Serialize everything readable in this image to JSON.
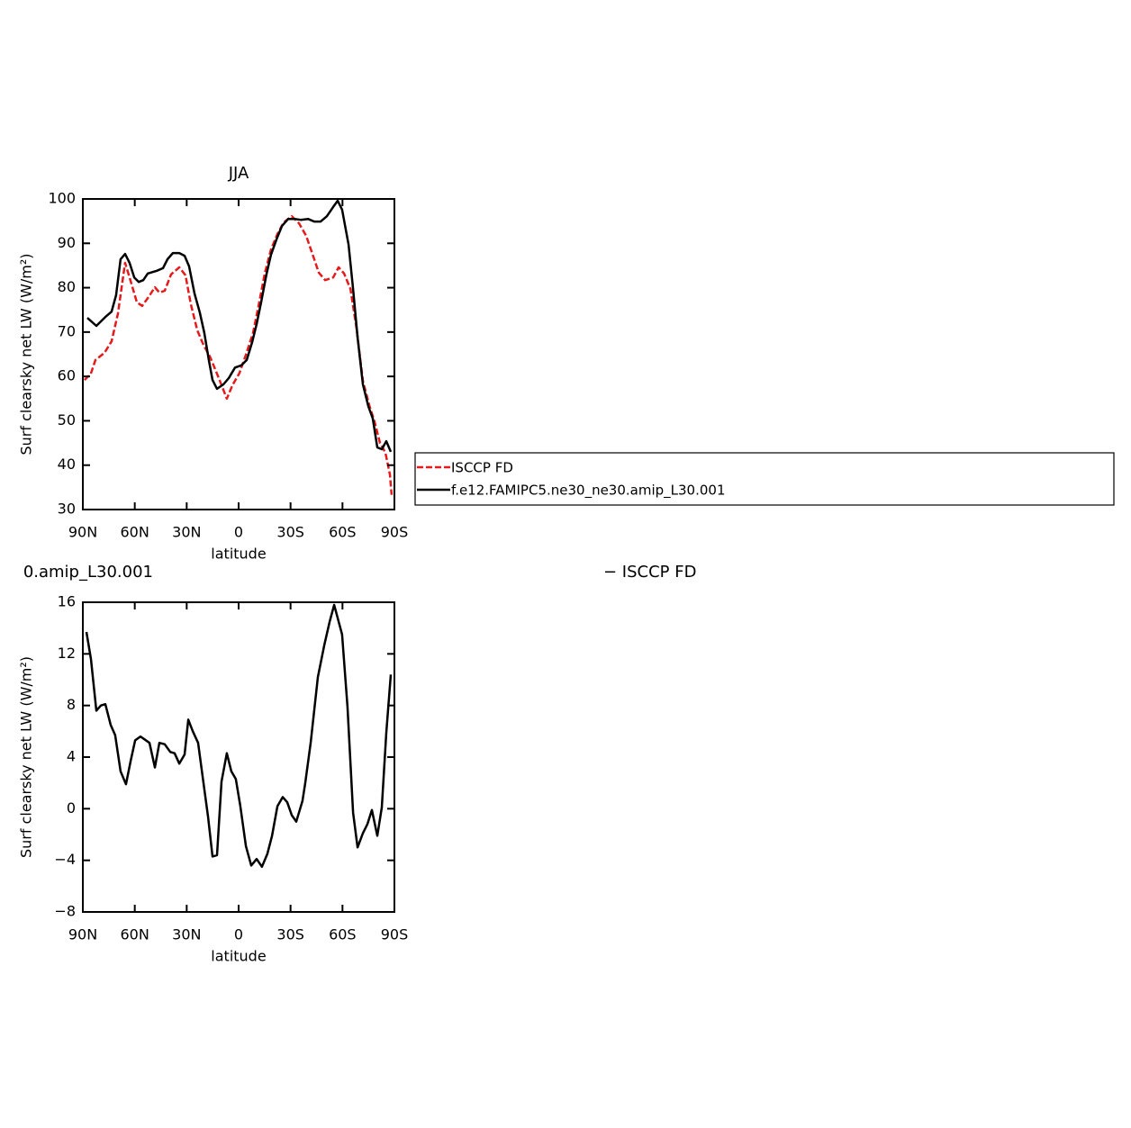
{
  "chart_data": [
    {
      "type": "line",
      "title": "JJA",
      "xlabel": "latitude",
      "ylabel": "Surf clearsky net LW (W/m²)",
      "xlim": [
        90,
        -90
      ],
      "ylim": [
        30,
        100
      ],
      "xticks": [
        {
          "value": 90,
          "label": "90N"
        },
        {
          "value": 60,
          "label": "60N"
        },
        {
          "value": 30,
          "label": "30N"
        },
        0,
        {
          "value": -30,
          "label": "30S"
        },
        {
          "value": -60,
          "label": "60S"
        },
        {
          "value": -90,
          "label": "90S"
        }
      ],
      "yticks": [
        30,
        40,
        50,
        60,
        70,
        80,
        90,
        100
      ],
      "legend": "right",
      "series": [
        {
          "name": "ISCCP FD",
          "color": "#e41a1c",
          "style": "dashed",
          "x": [
            89,
            85.4,
            82.7,
            77.5,
            73.4,
            69.7,
            65.6,
            62.4,
            58.8,
            55.7,
            52,
            48.4,
            45.8,
            42.7,
            39,
            34.3,
            30.7,
            27.6,
            23.9,
            20.3,
            16.6,
            12.5,
            9.4,
            6.8,
            3.6,
            -0.5,
            -4.2,
            -8.3,
            -11.4,
            -15.1,
            -18.7,
            -22.4,
            -26,
            -30.7,
            -34.9,
            -39,
            -43.2,
            -46.3,
            -50,
            -54.6,
            -57.8,
            -60.9,
            -64.6,
            -68.2,
            -71.8,
            -75.5,
            -78.6,
            -81.7,
            -84.8,
            -87.4,
            -88.4
          ],
          "values": [
            59.2,
            60.6,
            63.7,
            65.3,
            67.9,
            74.2,
            85.6,
            81.5,
            76.7,
            75.9,
            77.9,
            80.1,
            78.9,
            79.3,
            83,
            84.6,
            82.8,
            76.3,
            70.4,
            67.1,
            64.5,
            60.6,
            57.6,
            55,
            58,
            60.8,
            64.9,
            69.8,
            75.7,
            83.2,
            88.6,
            92.1,
            94.7,
            96.1,
            94.5,
            91.7,
            87,
            83.4,
            81.7,
            82.3,
            84.6,
            83.2,
            79.7,
            70.6,
            59,
            53.5,
            49.7,
            45,
            42.8,
            37.9,
            33.3
          ]
        },
        {
          "name": "f.e12.FAMIPC5.ne30_ne30.amip_L30.001",
          "color": "#000000",
          "style": "solid",
          "x": [
            87.4,
            82.2,
            77,
            73.4,
            70.8,
            68.2,
            65.6,
            63,
            60.3,
            57.7,
            55.1,
            52.5,
            47.3,
            43.7,
            41.1,
            38,
            34.3,
            31.2,
            28.6,
            25.5,
            22.4,
            19.8,
            17.2,
            15.1,
            12.5,
            8.8,
            5.7,
            2.1,
            -1.6,
            -4.7,
            -7.8,
            -10.4,
            -13,
            -16.1,
            -18.7,
            -21.9,
            -25,
            -28.6,
            -32.3,
            -35.9,
            -40.1,
            -43.7,
            -47.4,
            -51,
            -54.6,
            -57.2,
            -59.8,
            -63.5,
            -66.1,
            -68.7,
            -71.8,
            -74.9,
            -77.5,
            -80.1,
            -82.7,
            -85.3,
            -87.9
          ],
          "values": [
            73.2,
            71.4,
            73.4,
            74.6,
            78.3,
            86.4,
            87.6,
            85.6,
            82.3,
            81.3,
            81.7,
            83.2,
            83.8,
            84.4,
            86.4,
            87.8,
            87.8,
            87.2,
            84.8,
            78.7,
            74.4,
            69.8,
            63.7,
            59.2,
            57.2,
            58.2,
            59.6,
            62,
            62.5,
            63.7,
            67.7,
            71.8,
            76.7,
            83,
            87.4,
            90.9,
            93.9,
            95.5,
            95.5,
            95.3,
            95.5,
            94.9,
            94.9,
            96.1,
            98.2,
            99.6,
            97.6,
            89.7,
            79.7,
            68.8,
            58.2,
            53.3,
            50.5,
            44,
            43.6,
            45.4,
            43
          ]
        }
      ]
    },
    {
      "type": "line",
      "title": "0.amip_L30.001",
      "annotation": "− ISCCP FD",
      "xlabel": "latitude",
      "ylabel": "Surf clearsky net LW (W/m²)",
      "xlim": [
        90,
        -90
      ],
      "ylim": [
        -8,
        16
      ],
      "xticks": [
        {
          "value": 90,
          "label": "90N"
        },
        {
          "value": 60,
          "label": "60N"
        },
        {
          "value": 30,
          "label": "30N"
        },
        0,
        {
          "value": -30,
          "label": "30S"
        },
        {
          "value": -60,
          "label": "60S"
        },
        {
          "value": -90,
          "label": "90S"
        }
      ],
      "yticks": [
        {
          "value": -8,
          "label": "−8"
        },
        {
          "value": -4,
          "label": "−4"
        },
        0,
        4,
        8,
        12,
        16
      ],
      "series": [
        {
          "color": "#000000",
          "style": "solid",
          "x": [
            87.9,
            85.3,
            82.2,
            79.6,
            77,
            73.9,
            71.3,
            68.2,
            65.1,
            62.4,
            59.8,
            56.7,
            51.5,
            48.4,
            45.8,
            42.7,
            39.5,
            37,
            34.3,
            31.2,
            29.1,
            26.5,
            23.4,
            20.8,
            17.7,
            15.1,
            12.5,
            9.9,
            6.8,
            4.2,
            1.6,
            -1,
            -4.2,
            -7.3,
            -10.4,
            -13.5,
            -16.6,
            -19.3,
            -22.4,
            -25.5,
            -28.1,
            -30.7,
            -33.3,
            -36.9,
            -38.5,
            -41.6,
            -45.8,
            -49.5,
            -52.6,
            -55.2,
            -59.8,
            -62.9,
            -66.1,
            -68.7,
            -71.8,
            -74.4,
            -77,
            -80.1,
            -82.7,
            -85.3,
            -87.9
          ],
          "values": [
            13.7,
            11.6,
            7.6,
            8,
            8.1,
            6.5,
            5.7,
            2.9,
            1.9,
            3.7,
            5.3,
            5.6,
            5.1,
            3.2,
            5.1,
            5,
            4.4,
            4.3,
            3.5,
            4.2,
            6.9,
            6,
            5.1,
            2.5,
            -0.6,
            -3.7,
            -3.6,
            2.1,
            4.3,
            2.9,
            2.3,
            0.2,
            -2.9,
            -4.4,
            -3.9,
            -4.5,
            -3.5,
            -2.1,
            0.2,
            0.9,
            0.5,
            -0.5,
            -1,
            0.6,
            2,
            5.1,
            10.2,
            12.7,
            14.5,
            15.8,
            13.5,
            7.9,
            -0.3,
            -3,
            -1.9,
            -1.2,
            -0.1,
            -2.1,
            0.1,
            5.9,
            10.4
          ]
        }
      ]
    }
  ]
}
